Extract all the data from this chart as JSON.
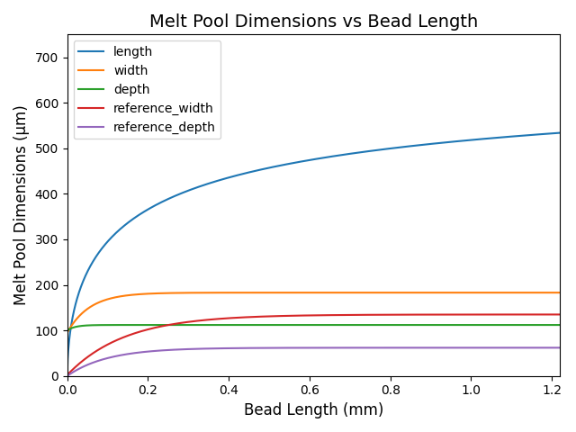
{
  "title": "Melt Pool Dimensions vs Bead Length",
  "xlabel": "Bead Length (mm)",
  "ylabel": "Melt Pool Dimensions (μm)",
  "x_max": 1.22,
  "ylim_max": 750,
  "n_points": 1000,
  "figsize": [
    6.4,
    4.8
  ],
  "dpi": 100,
  "colors": {
    "length": "#1f77b4",
    "width": "#ff7f0e",
    "depth": "#2ca02c",
    "reference_width": "#d62728",
    "reference_depth": "#9467bd"
  },
  "legend_order": [
    "length",
    "width",
    "depth",
    "reference_width",
    "reference_depth"
  ]
}
